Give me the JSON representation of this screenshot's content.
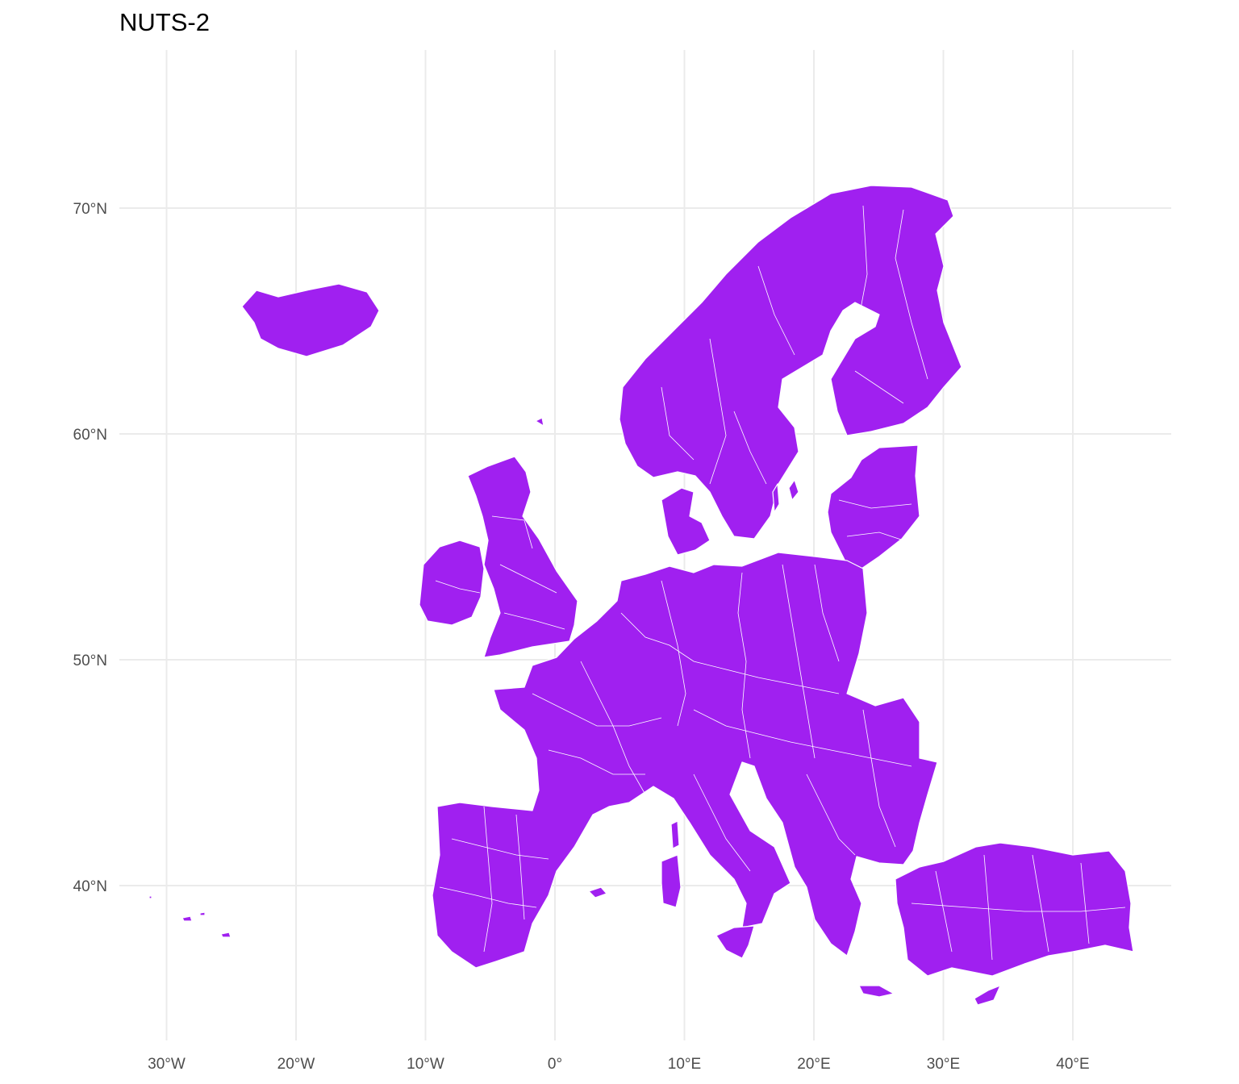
{
  "title": "NUTS-2",
  "fill_color": "#a020f0",
  "border_color": "#ffffff",
  "chart_data": {
    "type": "map",
    "title": "NUTS-2",
    "x_ticks": [
      {
        "value": -30,
        "label": "30°W"
      },
      {
        "value": -20,
        "label": "20°W"
      },
      {
        "value": -10,
        "label": "10°W"
      },
      {
        "value": 0,
        "label": "0°"
      },
      {
        "value": 10,
        "label": "10°E"
      },
      {
        "value": 20,
        "label": "20°E"
      },
      {
        "value": 30,
        "label": "30°E"
      },
      {
        "value": 40,
        "label": "40°E"
      }
    ],
    "y_ticks": [
      {
        "value": 40,
        "label": "40°N"
      },
      {
        "value": 50,
        "label": "50°N"
      },
      {
        "value": 60,
        "label": "60°N"
      },
      {
        "value": 70,
        "label": "70°N"
      }
    ],
    "xlim": [
      -32,
      46
    ],
    "ylim": [
      33,
      72
    ],
    "grid": true,
    "legend": "none"
  }
}
